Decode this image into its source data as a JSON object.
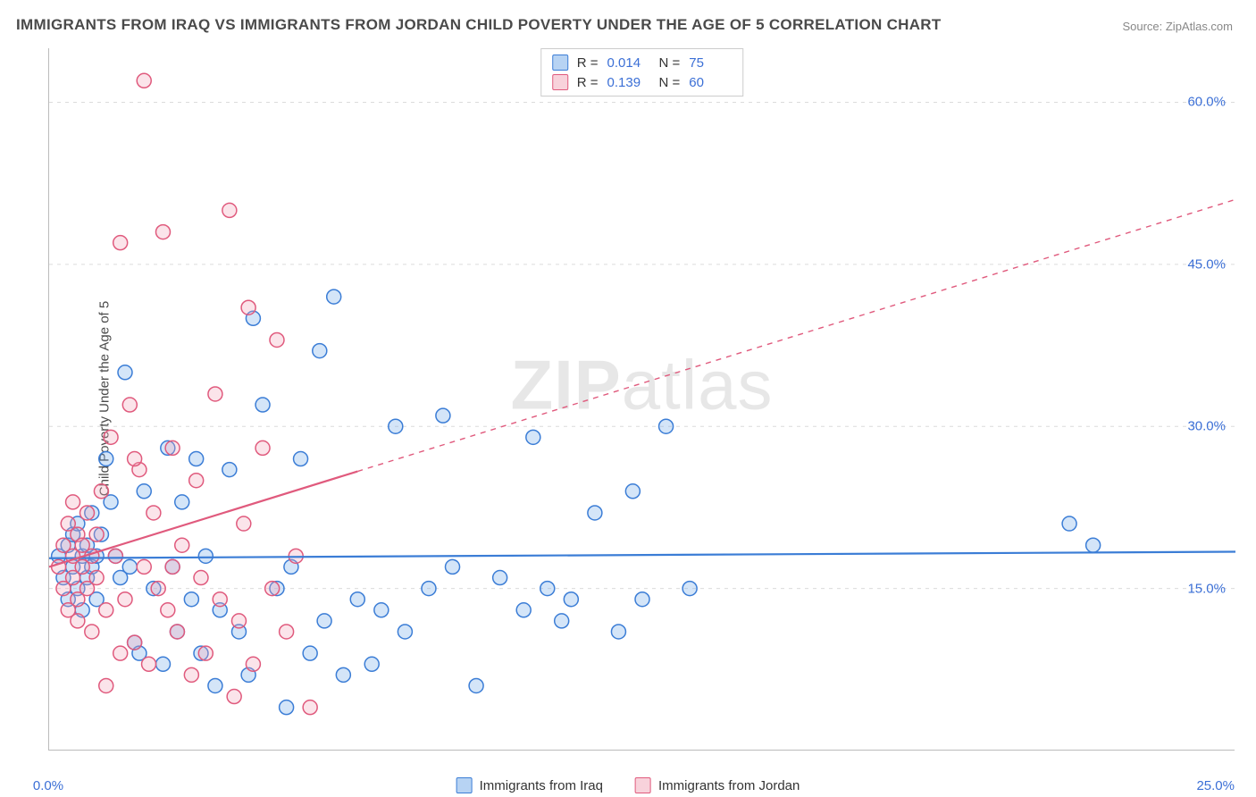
{
  "title": "IMMIGRANTS FROM IRAQ VS IMMIGRANTS FROM JORDAN CHILD POVERTY UNDER THE AGE OF 5 CORRELATION CHART",
  "source_label": "Source: ",
  "source_name": "ZipAtlas.com",
  "ylabel": "Child Poverty Under the Age of 5",
  "watermark": "ZIPatlas",
  "chart": {
    "type": "scatter",
    "background_color": "#ffffff",
    "grid_color": "#dcdcdc",
    "axis_color": "#bbbbbb",
    "tick_color": "#3b6fd6",
    "xlim": [
      0,
      25
    ],
    "ylim": [
      0,
      65
    ],
    "yticks": [
      15,
      30,
      45,
      60
    ],
    "ytick_labels": [
      "15.0%",
      "30.0%",
      "45.0%",
      "60.0%"
    ],
    "xticks": [
      0,
      25
    ],
    "xtick_labels": [
      "0.0%",
      "25.0%"
    ],
    "marker_radius": 8,
    "marker_stroke_width": 1.5,
    "marker_fill_opacity": 0.3,
    "trendline_width": 2.2,
    "series": [
      {
        "id": "iraq",
        "label": "Immigrants from Iraq",
        "color": "#6fa8e8",
        "stroke": "#3b7dd6",
        "R": "0.014",
        "N": "75",
        "trendline": {
          "x1": 0,
          "y1": 17.8,
          "x2": 25,
          "y2": 18.4,
          "solid_until_x": 25
        },
        "points": [
          [
            0.2,
            18
          ],
          [
            0.3,
            16
          ],
          [
            0.4,
            19
          ],
          [
            0.4,
            14
          ],
          [
            0.5,
            20
          ],
          [
            0.5,
            17
          ],
          [
            0.6,
            15
          ],
          [
            0.6,
            21
          ],
          [
            0.7,
            18
          ],
          [
            0.7,
            13
          ],
          [
            0.8,
            19
          ],
          [
            0.8,
            16
          ],
          [
            0.9,
            22
          ],
          [
            0.9,
            17
          ],
          [
            1.0,
            18
          ],
          [
            1.0,
            14
          ],
          [
            1.1,
            20
          ],
          [
            1.2,
            27
          ],
          [
            1.3,
            23
          ],
          [
            1.4,
            18
          ],
          [
            1.5,
            16
          ],
          [
            1.6,
            35
          ],
          [
            1.7,
            17
          ],
          [
            1.8,
            10
          ],
          [
            1.9,
            9
          ],
          [
            2.0,
            24
          ],
          [
            2.2,
            15
          ],
          [
            2.4,
            8
          ],
          [
            2.5,
            28
          ],
          [
            2.6,
            17
          ],
          [
            2.7,
            11
          ],
          [
            2.8,
            23
          ],
          [
            3.0,
            14
          ],
          [
            3.1,
            27
          ],
          [
            3.2,
            9
          ],
          [
            3.3,
            18
          ],
          [
            3.5,
            6
          ],
          [
            3.6,
            13
          ],
          [
            3.8,
            26
          ],
          [
            4.0,
            11
          ],
          [
            4.2,
            7
          ],
          [
            4.3,
            40
          ],
          [
            4.5,
            32
          ],
          [
            4.8,
            15
          ],
          [
            5.0,
            4
          ],
          [
            5.1,
            17
          ],
          [
            5.3,
            27
          ],
          [
            5.5,
            9
          ],
          [
            5.7,
            37
          ],
          [
            5.8,
            12
          ],
          [
            6.0,
            42
          ],
          [
            6.2,
            7
          ],
          [
            6.5,
            14
          ],
          [
            6.8,
            8
          ],
          [
            7.0,
            13
          ],
          [
            7.3,
            30
          ],
          [
            7.5,
            11
          ],
          [
            8.0,
            15
          ],
          [
            8.3,
            31
          ],
          [
            8.5,
            17
          ],
          [
            9.0,
            6
          ],
          [
            9.5,
            16
          ],
          [
            10.0,
            13
          ],
          [
            10.2,
            29
          ],
          [
            10.5,
            15
          ],
          [
            10.8,
            12
          ],
          [
            11.0,
            14
          ],
          [
            11.5,
            22
          ],
          [
            12.0,
            11
          ],
          [
            12.3,
            24
          ],
          [
            12.5,
            14
          ],
          [
            13.0,
            30
          ],
          [
            13.5,
            15
          ],
          [
            21.5,
            21
          ],
          [
            22.0,
            19
          ]
        ]
      },
      {
        "id": "jordan",
        "label": "Immigrants from Jordan",
        "color": "#f2a6b8",
        "stroke": "#e05a7d",
        "R": "0.139",
        "N": "60",
        "trendline": {
          "x1": 0,
          "y1": 17.0,
          "x2": 25,
          "y2": 51.0,
          "solid_until_x": 6.5
        },
        "points": [
          [
            0.2,
            17
          ],
          [
            0.3,
            19
          ],
          [
            0.3,
            15
          ],
          [
            0.4,
            21
          ],
          [
            0.4,
            13
          ],
          [
            0.5,
            18
          ],
          [
            0.5,
            16
          ],
          [
            0.6,
            20
          ],
          [
            0.6,
            14
          ],
          [
            0.7,
            19
          ],
          [
            0.7,
            17
          ],
          [
            0.8,
            22
          ],
          [
            0.8,
            15
          ],
          [
            0.9,
            18
          ],
          [
            0.9,
            11
          ],
          [
            1.0,
            20
          ],
          [
            1.0,
            16
          ],
          [
            1.1,
            24
          ],
          [
            1.2,
            13
          ],
          [
            1.3,
            29
          ],
          [
            1.4,
            18
          ],
          [
            1.5,
            47
          ],
          [
            1.6,
            14
          ],
          [
            1.7,
            32
          ],
          [
            1.8,
            10
          ],
          [
            1.9,
            26
          ],
          [
            2.0,
            17
          ],
          [
            2.0,
            62
          ],
          [
            2.1,
            8
          ],
          [
            2.2,
            22
          ],
          [
            2.3,
            15
          ],
          [
            2.4,
            48
          ],
          [
            2.5,
            13
          ],
          [
            2.6,
            28
          ],
          [
            2.7,
            11
          ],
          [
            2.8,
            19
          ],
          [
            3.0,
            7
          ],
          [
            3.1,
            25
          ],
          [
            3.2,
            16
          ],
          [
            3.3,
            9
          ],
          [
            3.5,
            33
          ],
          [
            3.6,
            14
          ],
          [
            3.8,
            50
          ],
          [
            4.0,
            12
          ],
          [
            4.1,
            21
          ],
          [
            4.2,
            41
          ],
          [
            4.3,
            8
          ],
          [
            4.5,
            28
          ],
          [
            4.7,
            15
          ],
          [
            4.8,
            38
          ],
          [
            5.0,
            11
          ],
          [
            5.2,
            18
          ],
          [
            5.5,
            4
          ],
          [
            1.2,
            6
          ],
          [
            1.5,
            9
          ],
          [
            1.8,
            27
          ],
          [
            0.5,
            23
          ],
          [
            0.6,
            12
          ],
          [
            2.6,
            17
          ],
          [
            3.9,
            5
          ]
        ]
      }
    ],
    "legend": {
      "R_label": "R =",
      "N_label": "N ="
    }
  }
}
